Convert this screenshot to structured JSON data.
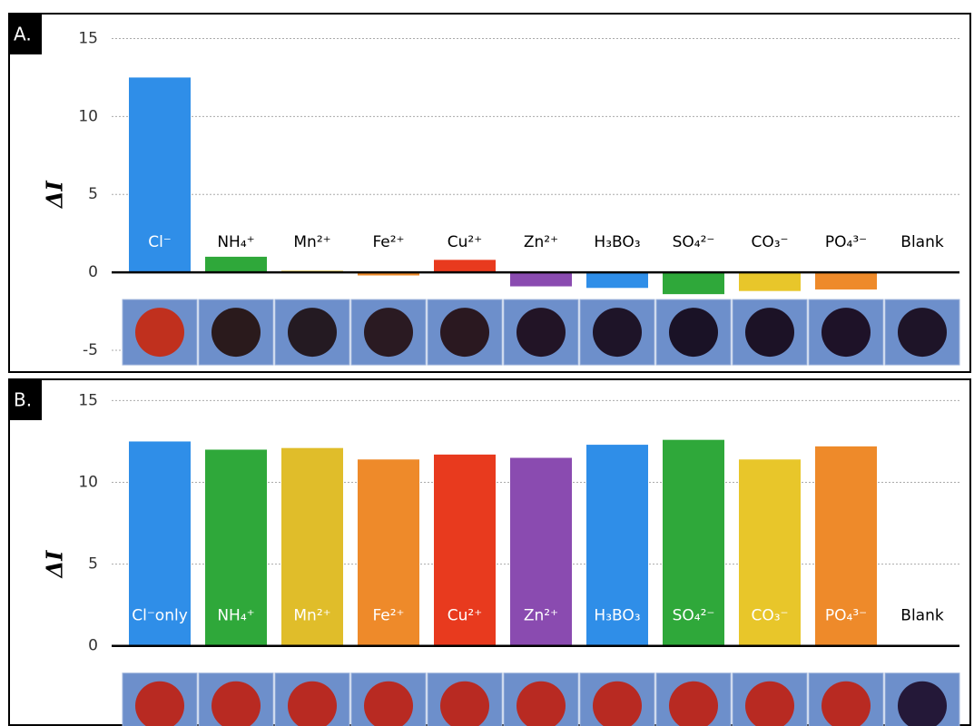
{
  "chart_data": [
    {
      "type": "bar",
      "panel_label": "A.",
      "y_label": "ΔI",
      "categories": [
        "Cl⁻",
        "NH₄⁺",
        "Mn²⁺",
        "Fe²⁺",
        "Cu²⁺",
        "Zn²⁺",
        "H₃BO₃",
        "SO₄²⁻",
        "CO₃⁻",
        "PO₄³⁻",
        "Blank"
      ],
      "values": [
        12.5,
        1.0,
        0.1,
        -0.2,
        0.8,
        -0.9,
        -1.0,
        -1.4,
        -1.2,
        -1.1,
        0
      ],
      "colors": [
        "#2f8ee8",
        "#2fa83a",
        "#e8c62a",
        "#ee8a2a",
        "#e83a1e",
        "#8a4bb0",
        "#2f8ee8",
        "#2fa83a",
        "#e8c62a",
        "#ee8a2a",
        "#555555"
      ],
      "spot_colors": [
        "#c0301e",
        "#2a1a1c",
        "#241a22",
        "#2a1a22",
        "#2a1820",
        "#221426",
        "#1e1428",
        "#1a1226",
        "#1c1226",
        "#1e1228",
        "#1e1428"
      ],
      "ylim": [
        -6.4,
        16.6
      ],
      "yticks": [
        -5,
        0,
        5,
        10,
        15
      ],
      "grid": true
    },
    {
      "type": "bar",
      "panel_label": "B.",
      "y_label": "ΔI",
      "categories": [
        "Cl⁻only",
        "NH₄⁺",
        "Mn²⁺",
        "Fe²⁺",
        "Cu²⁺",
        "Zn²⁺",
        "H₃BO₃",
        "SO₄²⁻",
        "CO₃⁻",
        "PO₄³⁻",
        "Blank"
      ],
      "values": [
        12.5,
        12.0,
        12.1,
        11.4,
        11.7,
        11.5,
        12.3,
        12.6,
        11.4,
        12.2,
        0
      ],
      "colors": [
        "#2f8ee8",
        "#2fa83a",
        "#e0bd2a",
        "#ee8a2a",
        "#e83a1e",
        "#8a4bb0",
        "#2f8ee8",
        "#2fa83a",
        "#e8c62a",
        "#ee8a2a",
        "#555555"
      ],
      "spot_colors": [
        "#b82a22",
        "#b82a22",
        "#b82a22",
        "#b82a22",
        "#b82a22",
        "#b82a22",
        "#b82a22",
        "#b82a22",
        "#b82a22",
        "#b82a22",
        "#241838"
      ],
      "ylim": [
        -4.9,
        16.3
      ],
      "yticks": [
        0,
        5,
        10,
        15
      ],
      "grid": true
    }
  ]
}
